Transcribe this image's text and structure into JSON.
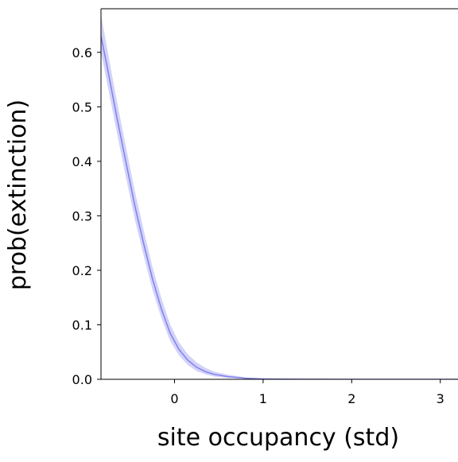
{
  "chart_data": {
    "type": "area",
    "title": "",
    "xlabel": "site occupancy (std)",
    "ylabel": "prob(extinction)",
    "xlim": [
      -0.83,
      3.2
    ],
    "ylim": [
      0.0,
      0.68
    ],
    "xticks": [
      0,
      1,
      2,
      3
    ],
    "xtick_labels": [
      "0",
      "1",
      "2",
      "3"
    ],
    "yticks": [
      0.0,
      0.1,
      0.2,
      0.3,
      0.4,
      0.5,
      0.6
    ],
    "ytick_labels": [
      "0.0",
      "0.1",
      "0.2",
      "0.3",
      "0.4",
      "0.5",
      "0.6"
    ],
    "grid": false,
    "legend": false,
    "x": [
      -0.83,
      -0.75,
      -0.65,
      -0.55,
      -0.45,
      -0.35,
      -0.25,
      -0.15,
      -0.05,
      0.05,
      0.15,
      0.25,
      0.35,
      0.45,
      0.6,
      0.8,
      1.0,
      1.2,
      1.5,
      2.0,
      2.5,
      3.0,
      3.2
    ],
    "series": [
      {
        "color": "#8080ee",
        "y": [
          0.63,
          0.565,
          0.48,
          0.4,
          0.32,
          0.25,
          0.185,
          0.13,
          0.085,
          0.055,
          0.035,
          0.022,
          0.014,
          0.009,
          0.005,
          0.002,
          0.0008,
          0.0003,
          0.0001,
          0.0,
          0.0,
          0.0,
          0.0
        ],
        "lower": [
          0.6,
          0.535,
          0.452,
          0.372,
          0.295,
          0.228,
          0.165,
          0.113,
          0.071,
          0.044,
          0.026,
          0.015,
          0.009,
          0.005,
          0.0025,
          0.001,
          0.0003,
          0.0001,
          0.0,
          0.0,
          0.0,
          0.0,
          0.0
        ],
        "upper": [
          0.67,
          0.598,
          0.51,
          0.428,
          0.347,
          0.275,
          0.207,
          0.15,
          0.101,
          0.068,
          0.046,
          0.031,
          0.021,
          0.014,
          0.0085,
          0.0035,
          0.0015,
          0.0006,
          0.0002,
          0.0,
          0.0,
          0.0,
          0.0
        ]
      }
    ]
  }
}
